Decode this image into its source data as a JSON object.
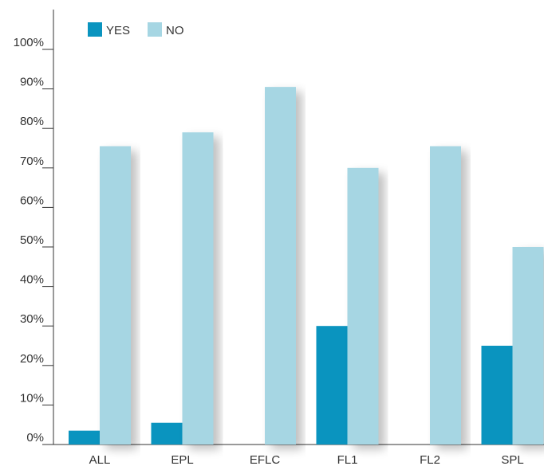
{
  "chart_data": {
    "type": "bar",
    "categories": [
      "ALL",
      "EPL",
      "EFLC",
      "FL1",
      "FL2",
      "SPL"
    ],
    "series": [
      {
        "name": "YES",
        "values": [
          3.5,
          5.5,
          0,
          30,
          0,
          25
        ],
        "color": "#0a94bf"
      },
      {
        "name": "NO",
        "values": [
          75.5,
          79,
          90.5,
          70,
          75.5,
          50
        ],
        "color": "#a6d6e3"
      }
    ],
    "ylim": [
      0,
      100
    ],
    "yticks": [
      "0%",
      "10%",
      "20%",
      "30%",
      "40%",
      "50%",
      "60%",
      "70%",
      "80%",
      "90%",
      "100%"
    ],
    "grid": false,
    "legend_position": "top-left"
  }
}
